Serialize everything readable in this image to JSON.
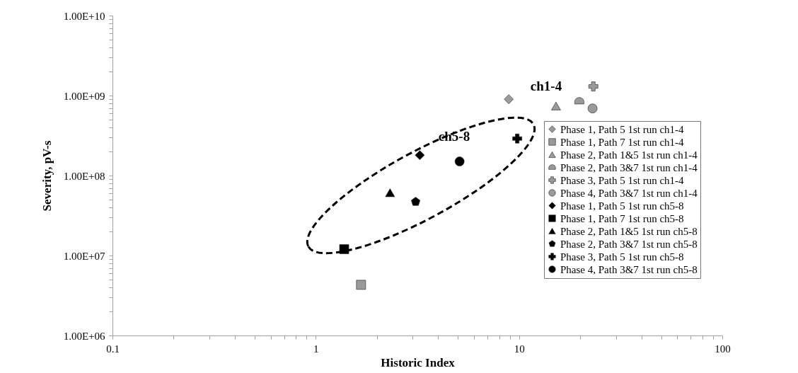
{
  "chart_data": {
    "type": "scatter",
    "xlabel": "Historic Index",
    "ylabel": "Severity, pV-s",
    "log": "xy",
    "grid": false,
    "legend": "bottom right",
    "xlim": [
      0.1,
      100
    ],
    "xticks": [
      {
        "value": 0.1,
        "label": "0.1"
      },
      {
        "value": 0.2,
        "label": null
      },
      {
        "value": 0.3,
        "label": null
      },
      {
        "value": 0.4,
        "label": null
      },
      {
        "value": 0.5,
        "label": null
      },
      {
        "value": 0.6,
        "label": null
      },
      {
        "value": 0.7,
        "label": null
      },
      {
        "value": 0.8,
        "label": null
      },
      {
        "value": 0.9,
        "label": null
      },
      {
        "value": 1,
        "label": "1"
      },
      {
        "value": 2,
        "label": null
      },
      {
        "value": 3,
        "label": null
      },
      {
        "value": 4,
        "label": null
      },
      {
        "value": 5,
        "label": null
      },
      {
        "value": 6,
        "label": null
      },
      {
        "value": 7,
        "label": null
      },
      {
        "value": 8,
        "label": null
      },
      {
        "value": 9,
        "label": null
      },
      {
        "value": 10,
        "label": "10"
      },
      {
        "value": 20,
        "label": null
      },
      {
        "value": 30,
        "label": null
      },
      {
        "value": 40,
        "label": null
      },
      {
        "value": 50,
        "label": null
      },
      {
        "value": 60,
        "label": null
      },
      {
        "value": 70,
        "label": null
      },
      {
        "value": 80,
        "label": null
      },
      {
        "value": 90,
        "label": null
      },
      {
        "value": 100,
        "label": "100"
      }
    ],
    "ylim": [
      1000000,
      10000000000
    ],
    "yticks": [
      {
        "value": 1000000,
        "label": "1.00E+06"
      },
      {
        "value": 2000000,
        "label": null
      },
      {
        "value": 3000000,
        "label": null
      },
      {
        "value": 4000000,
        "label": null
      },
      {
        "value": 5000000,
        "label": null
      },
      {
        "value": 6000000,
        "label": null
      },
      {
        "value": 7000000,
        "label": null
      },
      {
        "value": 8000000,
        "label": null
      },
      {
        "value": 9000000,
        "label": null
      },
      {
        "value": 10000000,
        "label": "1.00E+07"
      },
      {
        "value": 20000000,
        "label": null
      },
      {
        "value": 30000000,
        "label": null
      },
      {
        "value": 40000000,
        "label": null
      },
      {
        "value": 50000000,
        "label": null
      },
      {
        "value": 60000000,
        "label": null
      },
      {
        "value": 70000000,
        "label": null
      },
      {
        "value": 80000000,
        "label": null
      },
      {
        "value": 90000000,
        "label": null
      },
      {
        "value": 100000000,
        "label": "1.00E+08"
      },
      {
        "value": 200000000,
        "label": null
      },
      {
        "value": 300000000,
        "label": null
      },
      {
        "value": 400000000,
        "label": null
      },
      {
        "value": 500000000,
        "label": null
      },
      {
        "value": 600000000,
        "label": null
      },
      {
        "value": 700000000,
        "label": null
      },
      {
        "value": 800000000,
        "label": null
      },
      {
        "value": 900000000,
        "label": null
      },
      {
        "value": 1000000000,
        "label": "1.00E+09"
      },
      {
        "value": 2000000000,
        "label": null
      },
      {
        "value": 3000000000,
        "label": null
      },
      {
        "value": 4000000000,
        "label": null
      },
      {
        "value": 5000000000,
        "label": null
      },
      {
        "value": 6000000000,
        "label": null
      },
      {
        "value": 7000000000,
        "label": null
      },
      {
        "value": 8000000000,
        "label": null
      },
      {
        "value": 9000000000,
        "label": null
      },
      {
        "value": 10000000000,
        "label": "1.00E+10"
      }
    ],
    "annotations": [
      "ch1-4",
      "ch5-8"
    ],
    "series": [
      {
        "name": "Phase 1, Path 5 1st run ch1-4",
        "color": "#9a9a9a",
        "marker": "diamond",
        "x": [
          8.9
        ],
        "values": [
          900000000
        ]
      },
      {
        "name": "Phase 1, Path 7 1st run ch1-4",
        "color": "#9a9a9a",
        "marker": "square",
        "x": [
          1.67
        ],
        "values": [
          4300000
        ]
      },
      {
        "name": "Phase 2, Path 1&5 1st run ch1-4",
        "color": "#9a9a9a",
        "marker": "triangle",
        "x": [
          15.2
        ],
        "values": [
          740000000
        ]
      },
      {
        "name": "Phase 2, Path 3&7 1st run ch1-4",
        "color": "#9a9a9a",
        "x": [
          19.8
        ],
        "values": [
          850000000
        ]
      },
      {
        "name": "Phase 3, Path 5 1st run ch1-4",
        "color": "#9a9a9a",
        "marker": "cross",
        "x": [
          23.2
        ],
        "values": [
          1300000000
        ]
      },
      {
        "name": "Phase 4, Path 3&7 1st run ch1-4",
        "color": "#9a9a9a",
        "marker": "circle",
        "x": [
          23
        ],
        "values": [
          690000000
        ]
      },
      {
        "name": "Phase 1, Path 5 1st run ch5-8",
        "color": "#000000",
        "marker": "diamond",
        "x": [
          3.25
        ],
        "values": [
          180000000
        ]
      },
      {
        "name": "Phase 1, Path 7 1st run ch5-8",
        "color": "#000000",
        "marker": "square",
        "x": [
          1.38
        ],
        "values": [
          12000000
        ]
      },
      {
        "name": "Phase 2, Path 1&5 1st run ch5-8",
        "color": "#000000",
        "marker": "triangle",
        "x": [
          2.32
        ],
        "values": [
          61000000
        ]
      },
      {
        "name": "Phase 2, Path 3&7 1st run ch5-8",
        "color": "#000000",
        "x": [
          3.1
        ],
        "values": [
          47000000
        ]
      },
      {
        "name": "Phase 3, Path 5 1st run ch5-8",
        "color": "#000000",
        "marker": "cross",
        "x": [
          9.8
        ],
        "values": [
          290000000
        ]
      },
      {
        "name": "Phase 4, Path 3&7 1st run ch5-8",
        "color": "#000000",
        "marker": "circle",
        "x": [
          5.1
        ],
        "values": [
          150000000
        ]
      }
    ]
  }
}
